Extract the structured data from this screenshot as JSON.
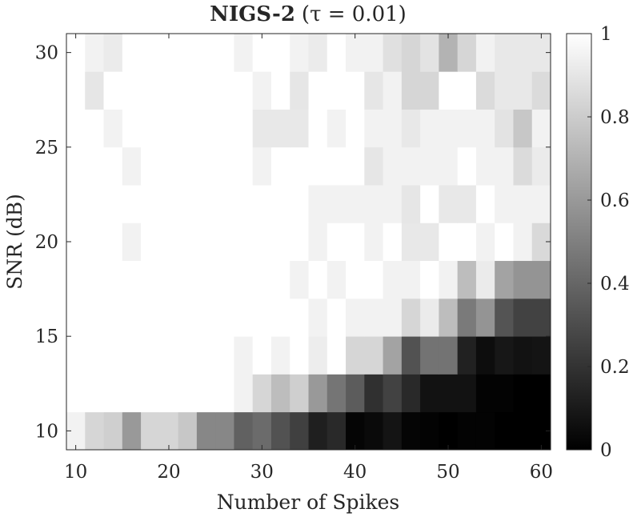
{
  "chart_data": {
    "type": "heatmap",
    "title": {
      "bold": "NIGS-2",
      "rest": "(τ = 0.01)"
    },
    "xlabel": "Number of Spikes",
    "ylabel": "SNR (dB)",
    "x_cells": [
      10,
      12,
      14,
      16,
      18,
      20,
      22,
      24,
      26,
      28,
      30,
      32,
      34,
      36,
      38,
      40,
      42,
      44,
      46,
      48,
      50,
      52,
      54,
      56,
      58,
      60
    ],
    "y_cells": [
      10,
      12,
      14,
      16,
      18,
      20,
      22,
      24,
      26,
      28,
      30
    ],
    "xlim": [
      9,
      61
    ],
    "ylim": [
      9,
      31
    ],
    "xticks": [
      10,
      20,
      30,
      40,
      50,
      60
    ],
    "yticks": [
      10,
      15,
      20,
      25,
      30
    ],
    "colorbar": {
      "min": 0,
      "max": 1,
      "ticks": [
        0,
        0.2,
        0.4,
        0.6,
        0.8,
        1
      ],
      "colormap": "gray"
    },
    "values": [
      [
        0.95,
        0.84,
        0.81,
        0.6,
        0.84,
        0.84,
        0.78,
        0.53,
        0.53,
        0.38,
        0.42,
        0.32,
        0.25,
        0.12,
        0.16,
        0.02,
        0.04,
        0.08,
        0.02,
        0.01,
        0.0,
        0.01,
        0.01,
        0.0,
        0.0,
        0.0
      ],
      [
        1,
        1,
        1,
        1,
        1,
        1,
        1,
        1,
        1,
        0.95,
        0.84,
        0.74,
        0.81,
        0.6,
        0.46,
        0.36,
        0.19,
        0.26,
        0.16,
        0.07,
        0.07,
        0.07,
        0.01,
        0.01,
        0.0,
        0.0
      ],
      [
        1,
        1,
        1,
        1,
        1,
        1,
        1,
        1,
        1,
        0.95,
        1,
        0.95,
        1,
        0.93,
        1,
        0.84,
        0.84,
        0.64,
        0.32,
        0.45,
        0.45,
        0.13,
        0.05,
        0.09,
        0.07,
        0.08
      ],
      [
        1,
        1,
        1,
        1,
        1,
        1,
        1,
        1,
        1,
        1,
        1,
        1,
        1,
        0.95,
        1,
        0.95,
        0.95,
        0.95,
        0.84,
        0.92,
        0.74,
        0.48,
        0.58,
        0.33,
        0.26,
        0.26
      ],
      [
        1,
        1,
        1,
        1,
        1,
        1,
        1,
        1,
        1,
        1,
        1,
        1,
        0.95,
        1,
        0.95,
        1,
        1,
        0.95,
        0.95,
        1,
        0.95,
        0.74,
        0.92,
        0.64,
        0.58,
        0.58
      ],
      [
        1,
        1,
        1,
        0.95,
        1,
        1,
        1,
        1,
        1,
        1,
        1,
        1,
        1,
        0.95,
        1,
        1,
        0.95,
        1,
        0.91,
        0.91,
        1,
        1,
        0.95,
        1,
        0.95,
        0.85
      ],
      [
        1,
        1,
        1,
        1,
        1,
        1,
        1,
        1,
        1,
        1,
        1,
        1,
        1,
        0.95,
        0.95,
        0.95,
        0.95,
        0.95,
        0.9,
        1,
        0.91,
        0.91,
        1,
        0.95,
        0.95,
        0.95
      ],
      [
        1,
        1,
        1,
        0.95,
        1,
        1,
        1,
        1,
        1,
        1,
        0.95,
        1,
        1,
        1,
        1,
        1,
        0.9,
        0.95,
        0.95,
        0.95,
        0.95,
        1,
        0.95,
        0.95,
        0.86,
        0.92
      ],
      [
        1,
        1,
        0.95,
        1,
        1,
        1,
        1,
        1,
        1,
        1,
        0.91,
        0.91,
        0.91,
        1,
        0.95,
        1,
        0.95,
        0.95,
        0.91,
        0.95,
        0.95,
        0.95,
        0.95,
        0.89,
        0.78,
        0.95
      ],
      [
        1,
        0.9,
        1,
        1,
        1,
        1,
        1,
        1,
        1,
        1,
        0.95,
        1,
        0.9,
        1,
        1,
        1,
        0.9,
        0.95,
        0.84,
        0.84,
        1,
        1,
        0.86,
        0.91,
        0.91,
        0.86
      ],
      [
        1,
        0.95,
        0.92,
        1,
        1,
        1,
        1,
        1,
        1,
        0.95,
        1,
        1,
        0.95,
        0.92,
        1,
        0.95,
        0.95,
        0.88,
        0.84,
        0.89,
        0.7,
        0.84,
        0.95,
        0.91,
        0.91,
        0.91
      ]
    ]
  }
}
